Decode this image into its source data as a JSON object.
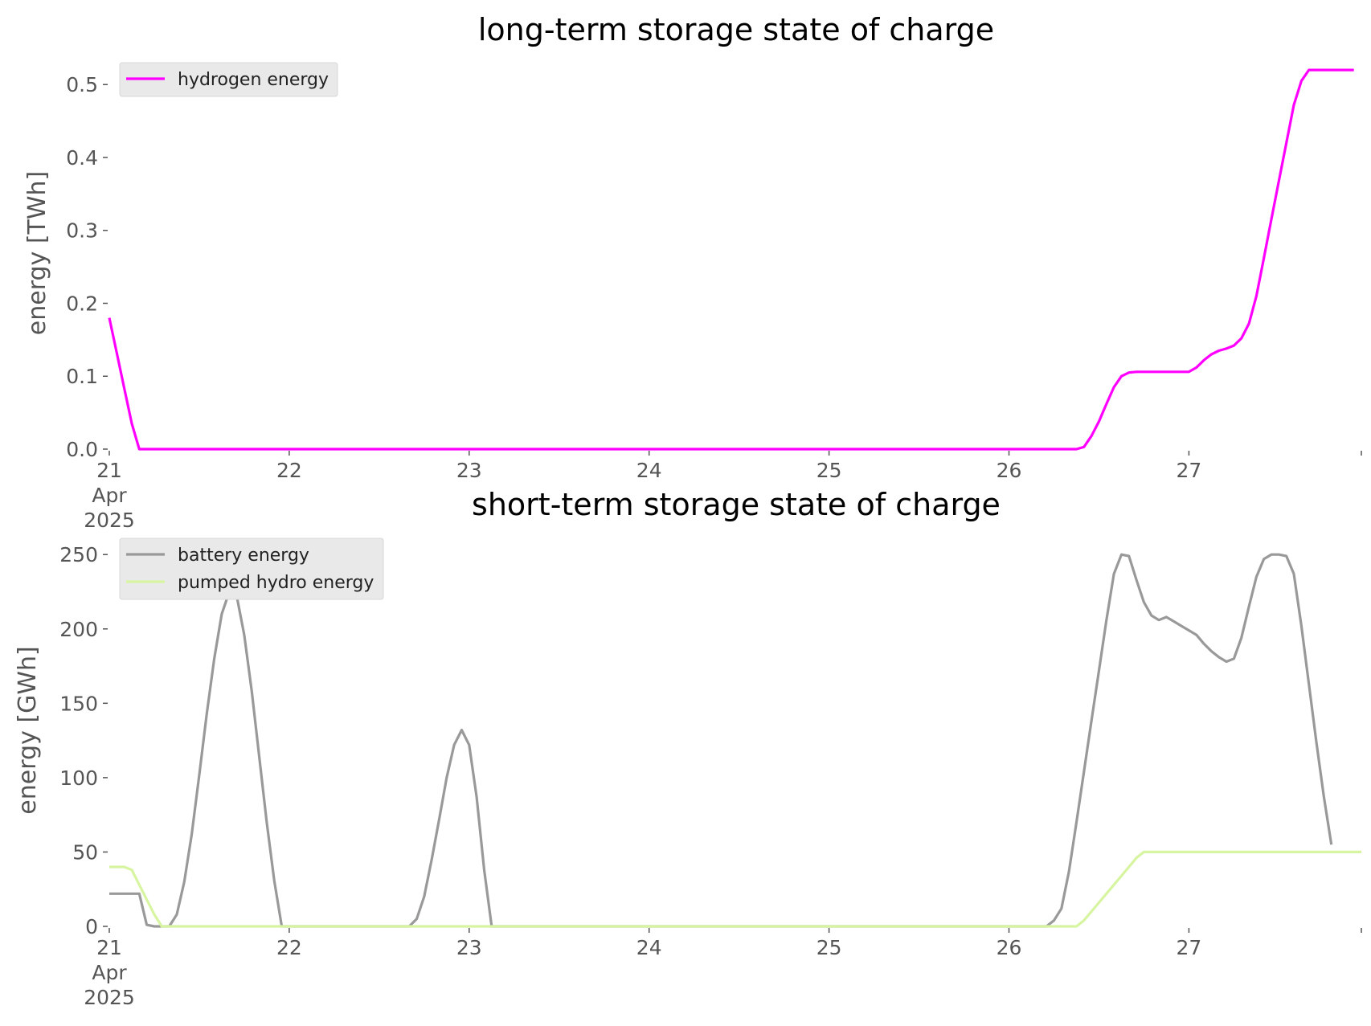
{
  "chart_data": [
    {
      "type": "line",
      "title": "long-term storage state of charge",
      "xlabel": "",
      "ylabel": "energy [TWh]",
      "x_start": "2025-04-21T00:00",
      "step_hours": 1,
      "xlim": [
        "2025-04-21T00:00",
        "2025-04-27T23:00"
      ],
      "ylim": [
        0,
        0.53
      ],
      "x_tick_labels": [
        "21\nApr\n2025",
        "22",
        "23",
        "24",
        "25",
        "26",
        "27"
      ],
      "y_tick_labels": [
        "0.0",
        "0.1",
        "0.2",
        "0.3",
        "0.4",
        "0.5"
      ],
      "y_ticks": [
        0,
        0.1,
        0.2,
        0.3,
        0.4,
        0.5
      ],
      "grid": false,
      "legend_position": "top-left",
      "series": [
        {
          "name": "hydrogen energy",
          "color": "#ff00ff",
          "values": [
            0.18,
            0.132,
            0.083,
            0.035,
            0,
            0,
            0,
            0,
            0,
            0,
            0,
            0,
            0,
            0,
            0,
            0,
            0,
            0,
            0,
            0,
            0,
            0,
            0,
            0,
            0,
            0,
            0,
            0,
            0,
            0,
            0,
            0,
            0,
            0,
            0,
            0,
            0,
            0,
            0,
            0,
            0,
            0,
            0,
            0,
            0,
            0,
            0,
            0,
            0,
            0,
            0,
            0,
            0,
            0,
            0,
            0,
            0,
            0,
            0,
            0,
            0,
            0,
            0,
            0,
            0,
            0,
            0,
            0,
            0,
            0,
            0,
            0,
            0,
            0,
            0,
            0,
            0,
            0,
            0,
            0,
            0,
            0,
            0,
            0,
            0,
            0,
            0,
            0,
            0,
            0,
            0,
            0,
            0,
            0,
            0,
            0,
            0,
            0,
            0,
            0,
            0,
            0,
            0,
            0,
            0,
            0,
            0,
            0,
            0,
            0,
            0,
            0,
            0,
            0,
            0,
            0,
            0,
            0,
            0,
            0,
            0,
            0,
            0,
            0,
            0,
            0,
            0,
            0,
            0,
            0,
            0.003,
            0.018,
            0.038,
            0.062,
            0.085,
            0.1,
            0.105,
            0.106,
            0.106,
            0.106,
            0.106,
            0.106,
            0.106,
            0.106,
            0.106,
            0.112,
            0.122,
            0.13,
            0.135,
            0.138,
            0.142,
            0.152,
            0.172,
            0.21,
            0.262,
            0.315,
            0.368,
            0.42,
            0.472,
            0.505,
            0.52,
            0.52,
            0.52,
            0.52,
            0.52,
            0.52,
            0.52
          ]
        }
      ]
    },
    {
      "type": "line",
      "title": "short-term storage state of charge",
      "xlabel": "",
      "ylabel": "energy [GWh]",
      "x_start": "2025-04-21T00:00",
      "step_hours": 1,
      "xlim": [
        "2025-04-21T00:00",
        "2025-04-27T23:00"
      ],
      "ylim": [
        0,
        262
      ],
      "x_tick_labels": [
        "21\nApr\n2025",
        "22",
        "23",
        "24",
        "25",
        "26",
        "27"
      ],
      "y_tick_labels": [
        "0",
        "50",
        "100",
        "150",
        "200",
        "250"
      ],
      "y_ticks": [
        0,
        50,
        100,
        150,
        200,
        250
      ],
      "grid": false,
      "legend_position": "top-left",
      "series": [
        {
          "name": "battery energy",
          "color": "#999999",
          "values": [
            22,
            22,
            22,
            22,
            22,
            1,
            0,
            0,
            0,
            8,
            30,
            62,
            102,
            143,
            180,
            210,
            225,
            222,
            196,
            158,
            114,
            70,
            31,
            0,
            0,
            0,
            0,
            0,
            0,
            0,
            0,
            0,
            0,
            0,
            0,
            0,
            0,
            0,
            0,
            0,
            0,
            5,
            20,
            45,
            72,
            100,
            122,
            132,
            122,
            87,
            38,
            0,
            0,
            0,
            0,
            0,
            0,
            0,
            0,
            0,
            0,
            0,
            0,
            0,
            0,
            0,
            0,
            0,
            0,
            0,
            0,
            0,
            0,
            0,
            0,
            0,
            0,
            0,
            0,
            0,
            0,
            0,
            0,
            0,
            0,
            0,
            0,
            0,
            0,
            0,
            0,
            0,
            0,
            0,
            0,
            0,
            0,
            0,
            0,
            0,
            0,
            0,
            0,
            0,
            0,
            0,
            0,
            0,
            0,
            0,
            0,
            0,
            0,
            0,
            0,
            0,
            0,
            0,
            0,
            0,
            0,
            0,
            0,
            0,
            0,
            0,
            4,
            12,
            37,
            70,
            104,
            138,
            172,
            206,
            237,
            250,
            249,
            233,
            218,
            209,
            206,
            208,
            205,
            202,
            199,
            196,
            190,
            185,
            181,
            178,
            180,
            194,
            215,
            235,
            247,
            250,
            250,
            249,
            237,
            202,
            163,
            124,
            87,
            55
          ]
        },
        {
          "name": "pumped hydro energy",
          "color": "#d7f5a0",
          "values": [
            40,
            40,
            40,
            38,
            28,
            18,
            8,
            0,
            0,
            0,
            0,
            0,
            0,
            0,
            0,
            0,
            0,
            0,
            0,
            0,
            0,
            0,
            0,
            0,
            0,
            0,
            0,
            0,
            0,
            0,
            0,
            0,
            0,
            0,
            0,
            0,
            0,
            0,
            0,
            0,
            0,
            0,
            0,
            0,
            0,
            0,
            0,
            0,
            0,
            0,
            0,
            0,
            0,
            0,
            0,
            0,
            0,
            0,
            0,
            0,
            0,
            0,
            0,
            0,
            0,
            0,
            0,
            0,
            0,
            0,
            0,
            0,
            0,
            0,
            0,
            0,
            0,
            0,
            0,
            0,
            0,
            0,
            0,
            0,
            0,
            0,
            0,
            0,
            0,
            0,
            0,
            0,
            0,
            0,
            0,
            0,
            0,
            0,
            0,
            0,
            0,
            0,
            0,
            0,
            0,
            0,
            0,
            0,
            0,
            0,
            0,
            0,
            0,
            0,
            0,
            0,
            0,
            0,
            0,
            0,
            0,
            0,
            0,
            0,
            0,
            0,
            0,
            0,
            0,
            0,
            4,
            10,
            16,
            22,
            28,
            34,
            40,
            46,
            50,
            50,
            50,
            50,
            50,
            50,
            50,
            50,
            50,
            50,
            50,
            50,
            50,
            50,
            50,
            50,
            50,
            50,
            50,
            50,
            50,
            50,
            50,
            50,
            50,
            50,
            50,
            50,
            50,
            50
          ]
        }
      ]
    }
  ]
}
